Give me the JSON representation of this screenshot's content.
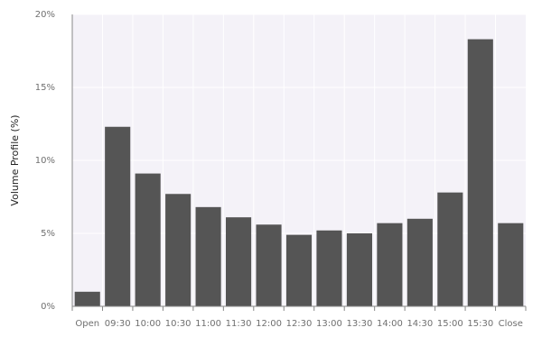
{
  "chart_data": {
    "type": "bar",
    "title": "",
    "xlabel": "",
    "ylabel": "Volume Profile (%)",
    "ylim": [
      0,
      20
    ],
    "yticks": [
      0,
      5,
      10,
      15,
      20
    ],
    "ytick_labels": [
      "0%",
      "5%",
      "10%",
      "15%",
      "20%"
    ],
    "grid": true,
    "categories": [
      "Open",
      "09:30",
      "10:00",
      "10:30",
      "11:00",
      "11:30",
      "12:00",
      "12:30",
      "13:00",
      "13:30",
      "14:00",
      "14:30",
      "15:00",
      "15:30",
      "Close"
    ],
    "values": [
      1.0,
      12.3,
      9.1,
      7.7,
      6.8,
      6.1,
      5.6,
      4.9,
      5.2,
      5.0,
      5.7,
      6.0,
      7.8,
      18.3,
      5.7
    ],
    "colors": {
      "bar": "#555555",
      "plot_bg": "#f4f2f8",
      "grid": "#ffffff",
      "axis": "#888888"
    }
  }
}
